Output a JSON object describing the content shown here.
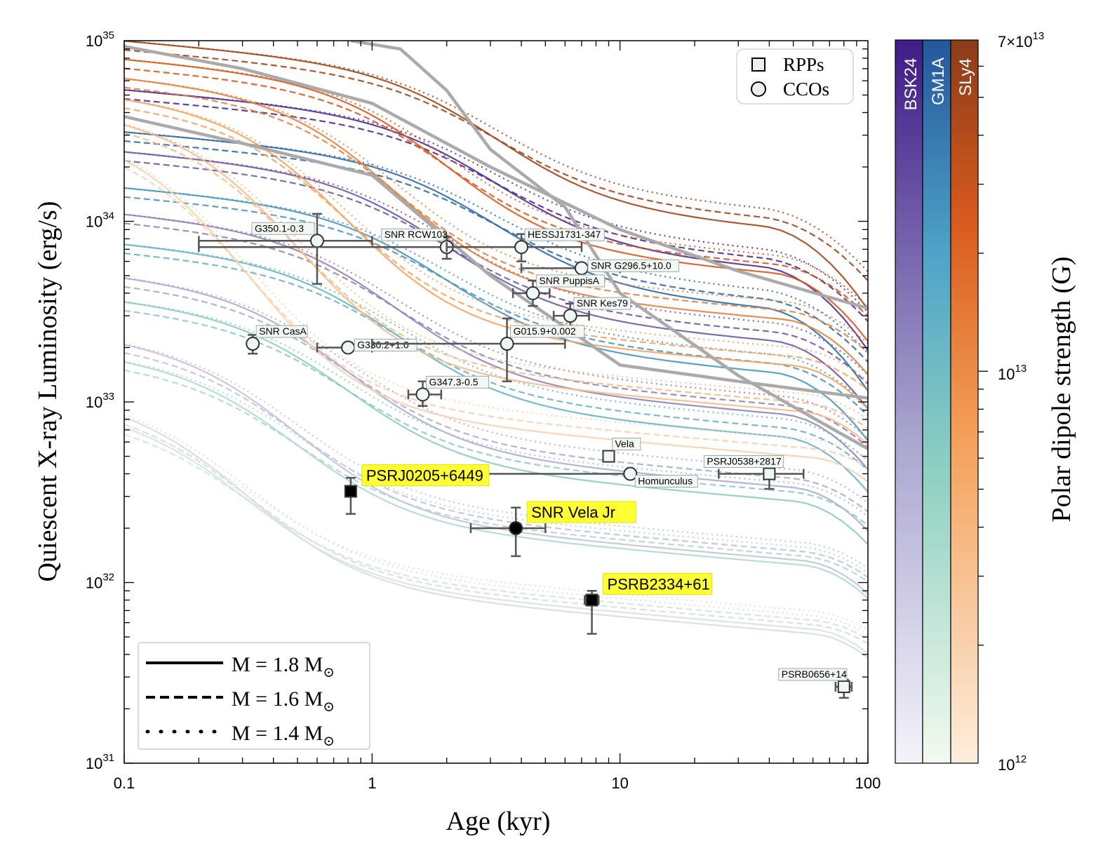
{
  "chart_data": {
    "type": "line",
    "xlabel": "Age (kyr)",
    "ylabel": "Quiescent X-ray Luminosity (erg/s)",
    "xscale": "log",
    "yscale": "log",
    "xlim": [
      0.1,
      100
    ],
    "ylim": [
      1e+31,
      1e+35
    ],
    "x_ticks": [
      {
        "value": 0.1,
        "label": "0.1"
      },
      {
        "value": 1,
        "label": "1"
      },
      {
        "value": 10,
        "label": "10"
      },
      {
        "value": 100,
        "label": "100"
      }
    ],
    "y_ticks": [
      {
        "value": 1e+31,
        "base": "10",
        "exp": "31"
      },
      {
        "value": 1e+32,
        "base": "10",
        "exp": "32"
      },
      {
        "value": 1e+33,
        "base": "10",
        "exp": "33"
      },
      {
        "value": 1e+34,
        "base": "10",
        "exp": "34"
      },
      {
        "value": 1e+35,
        "base": "10",
        "exp": "35"
      }
    ],
    "legend_markers": {
      "placement": "top-right",
      "items": [
        {
          "label": "RPPs",
          "marker": "square"
        },
        {
          "label": "CCOs",
          "marker": "circle"
        }
      ]
    },
    "legend_lines": {
      "placement": "bottom-left",
      "items": [
        {
          "style": "solid",
          "label": "M = 1.8 M",
          "sub": "⊙"
        },
        {
          "style": "dashed",
          "label": "M = 1.6 M",
          "sub": "⊙"
        },
        {
          "style": "dotted",
          "label": "M = 1.4 M",
          "sub": "⊙"
        }
      ]
    },
    "colorbar": {
      "label": "Polar dipole strength (G)",
      "scale": "log",
      "range": [
        1000000000000.0,
        70000000000000.0
      ],
      "tick_top": "7×10",
      "tick_top_exp": "13",
      "tick_mid": "10",
      "tick_mid_exp": "13",
      "tick_bottom": "10",
      "tick_bottom_exp": "12",
      "strips": [
        {
          "name": "BSK24",
          "color_low": "#f4f3fa",
          "color_high": "#3f1b87"
        },
        {
          "name": "GM1A",
          "color_low": "#f3faee",
          "color_high": "#23579b"
        },
        {
          "name": "SLy4",
          "color_low": "#fdeedd",
          "color_high": "#8a3c1a"
        }
      ]
    },
    "reference_curves": [
      {
        "name": "gray-1",
        "color": "#aaaaaa",
        "x": [
          0.1,
          0.3,
          1,
          3,
          10,
          30,
          100
        ],
        "y": [
          9.3e+34,
          7e+34,
          4.5e+34,
          2e+34,
          9e+33,
          5.3e+33,
          3.3e+33
        ]
      },
      {
        "name": "gray-2",
        "color": "#aaaaaa",
        "x": [
          0.1,
          0.3,
          1,
          3,
          10,
          30,
          100
        ],
        "y": [
          3.8e+34,
          2.7e+34,
          1.8e+34,
          5e+33,
          1.6e+33,
          1.3e+33,
          1.05e+33
        ]
      },
      {
        "name": "gray-3",
        "color": "#aaaaaa",
        "x": [
          0.82,
          1.3,
          2,
          3,
          6,
          10,
          30,
          100
        ],
        "y": [
          1e+35,
          9e+34,
          5.3e+34,
          2.5e+34,
          1.2e+34,
          4e+33,
          1.4e+33,
          5.5e+32
        ]
      }
    ],
    "series_groups": [
      {
        "eos": "BSK24",
        "mass": "1.8",
        "dash": "solid"
      },
      {
        "eos": "BSK24",
        "mass": "1.6",
        "dash": "dashed"
      },
      {
        "eos": "BSK24",
        "mass": "1.4",
        "dash": "dotted"
      },
      {
        "eos": "GM1A",
        "mass": "1.8",
        "dash": "solid"
      },
      {
        "eos": "GM1A",
        "mass": "1.6",
        "dash": "dashed"
      },
      {
        "eos": "GM1A",
        "mass": "1.4",
        "dash": "dotted"
      },
      {
        "eos": "SLy4",
        "mass": "1.8",
        "dash": "solid"
      },
      {
        "eos": "SLy4",
        "mass": "1.6",
        "dash": "dashed"
      },
      {
        "eos": "SLy4",
        "mass": "1.4",
        "dash": "dotted"
      }
    ],
    "sources": [
      {
        "label": "G350.1-0.3",
        "type": "CCO",
        "age": 0.6,
        "age_err": [
          0.2,
          1.0
        ],
        "lum": 7.8e+33,
        "lum_err": [
          4.5e+33,
          1.1e+34
        ],
        "label_pos": "upper-left"
      },
      {
        "label": "SNR RCW103",
        "type": "CCO",
        "age": 2.0,
        "age_err": [
          0.2,
          4.0
        ],
        "lum": 7.2e+33,
        "lum_err": [
          6.2e+33,
          8.2e+33
        ],
        "label_pos": "upper-left"
      },
      {
        "label": "HESSJ1731-347",
        "type": "CCO",
        "age": 4.0,
        "age_err": [
          2.0,
          7.0
        ],
        "lum": 7.2e+33,
        "lum_err": [
          6e+33,
          8.5e+33
        ],
        "label_pos": "upper-right"
      },
      {
        "label": "SNR G296.5+10.0",
        "type": "CCO",
        "age": 7.0,
        "age_err": [
          4.0,
          10.0
        ],
        "lum": 5.5e+33,
        "lum_err": [
          5.5e+33,
          5.5e+33
        ],
        "label_pos": "right"
      },
      {
        "label": "SNR PuppisA",
        "type": "CCO",
        "age": 4.45,
        "age_err": [
          3.7,
          5.2
        ],
        "lum": 4e+33,
        "lum_err": [
          3.4e+33,
          4.7e+33
        ],
        "label_pos": "upper-right"
      },
      {
        "label": "SNR Kes79",
        "type": "CCO",
        "age": 6.3,
        "age_err": [
          5.4,
          7.5
        ],
        "lum": 3e+33,
        "lum_err": [
          2.6e+33,
          3.5e+33
        ],
        "label_pos": "upper-right"
      },
      {
        "label": "SNR CasA",
        "type": "CCO",
        "age": 0.33,
        "age_err": [
          0.33,
          0.33
        ],
        "lum": 2.1e+33,
        "lum_err": [
          1.85e+33,
          2.35e+33
        ],
        "label_pos": "upper-right"
      },
      {
        "label": "G330.2+1.0",
        "type": "CCO",
        "age": 0.8,
        "age_err": [
          0.6,
          1.0
        ],
        "lum": 2e+33,
        "lum_err": [
          2e+33,
          2e+33
        ],
        "label_pos": "right"
      },
      {
        "label": "G015.9+0.002",
        "type": "CCO",
        "age": 3.5,
        "age_err": [
          1.0,
          6.0
        ],
        "lum": 2.1e+33,
        "lum_err": [
          1.3e+33,
          2.9e+33
        ],
        "label_pos": "upper-right"
      },
      {
        "label": "G347.3-0.5",
        "type": "CCO",
        "age": 1.6,
        "age_err": [
          1.4,
          1.9
        ],
        "lum": 1.1e+33,
        "lum_err": [
          9.5e+32,
          1.3e+33
        ],
        "label_pos": "upper-right"
      },
      {
        "label": "Vela",
        "type": "RPP",
        "age": 9.0,
        "age_err": [
          9.0,
          9.0
        ],
        "lum": 5e+32,
        "lum_err": [
          5e+32,
          5e+32
        ],
        "label_pos": "upper-right"
      },
      {
        "label": "PSRJ0538+2817",
        "type": "RPP",
        "age": 40.0,
        "age_err": [
          25.0,
          55.0
        ],
        "lum": 4e+32,
        "lum_err": [
          3.3e+32,
          4.4e+32
        ],
        "label_pos": "upper-left"
      },
      {
        "label": "Homunculus",
        "type": "CCO",
        "age": 11.0,
        "age_err": [
          1.4,
          11.0
        ],
        "lum": 4e+32,
        "lum_err": [
          4e+32,
          4e+32
        ],
        "label_pos": "lower-right"
      },
      {
        "label": "PSRJ0205+6449",
        "type": "RPP",
        "age": 0.82,
        "age_err": [
          0.78,
          0.86
        ],
        "lum": 3.2e+32,
        "lum_err": [
          2.4e+32,
          3.8e+32
        ],
        "label_pos": "highlight",
        "highlight": true
      },
      {
        "label": "SNR Vela Jr",
        "type": "CCO",
        "age": 3.8,
        "age_err": [
          2.5,
          5.0
        ],
        "lum": 2e+32,
        "lum_err": [
          1.4e+32,
          2.6e+32
        ],
        "label_pos": "highlight",
        "highlight": true
      },
      {
        "label": "PSRB2334+61",
        "type": "RPP",
        "age": 7.7,
        "age_err": [
          7.2,
          8.2
        ],
        "lum": 8e+31,
        "lum_err": [
          5.2e+31,
          9e+31
        ],
        "label_pos": "highlight",
        "highlight": true
      },
      {
        "label": "PSRB0656+14",
        "type": "RPP",
        "age": 80.0,
        "age_err": [
          74.0,
          86.0
        ],
        "lum": 2.65e+31,
        "lum_err": [
          2.3e+31,
          2.9e+31
        ],
        "label_pos": "upper-left"
      }
    ]
  }
}
